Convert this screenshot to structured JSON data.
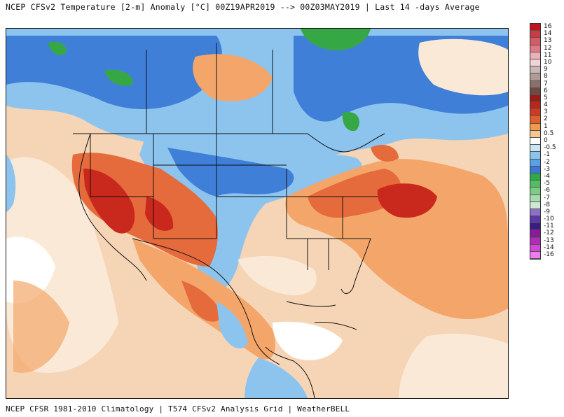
{
  "header": {
    "title": "NCEP CFSv2 Temperature [2-m] Anomaly  [°C] 00Z19APR2019 --> 00Z03MAY2019 | Last 14 -days Average"
  },
  "footer": {
    "credit": "NCEP CFSR 1981-2010 Climatology | T574 CFSv2 Analysis Grid | WeatherBELL"
  },
  "colorbar": {
    "labels": [
      "16",
      "14",
      "13",
      "12",
      "11",
      "10",
      "9",
      "8",
      "7",
      "6",
      "5",
      "4",
      "3",
      "2",
      "1",
      "0.5",
      "0",
      "-0.5",
      "-1",
      "-2",
      "-3",
      "-4",
      "-5",
      "-6",
      "-7",
      "-8",
      "-9",
      "-10",
      "-11",
      "-12",
      "-13",
      "-14",
      "-16"
    ],
    "colors": [
      "#c0141c",
      "#cc3a46",
      "#d45a66",
      "#e07a86",
      "#eab1b8",
      "#f2d4d6",
      "#c8b8b4",
      "#b09a96",
      "#8c6e6a",
      "#6e4a46",
      "#9a1c14",
      "#b8281a",
      "#d03a22",
      "#e0602a",
      "#f09a4a",
      "#f8c690",
      "#ffffff",
      "#c8e6f6",
      "#8cc4ee",
      "#5aa0e4",
      "#3a78d4",
      "#2ea84a",
      "#52be62",
      "#7ccc86",
      "#a6dcac",
      "#cde8d2",
      "#8a70c8",
      "#5a3aa6",
      "#3a1c86",
      "#8a1a9a",
      "#b22aba",
      "#d646d6",
      "#ee7cee"
    ]
  },
  "map": {
    "legend_note": "",
    "colors": {
      "ocean_warm": "#f6d5b6",
      "very_warm": "#c9281c",
      "warm": "#e56a3c",
      "mild": "#f4a66a",
      "neutral": "#fbe9d8",
      "cool": "#8cc4ee",
      "cold": "#3f7fd8",
      "very_cold": "#2a5fbf",
      "coldest": "#35a845",
      "boundary": "#111111"
    }
  }
}
